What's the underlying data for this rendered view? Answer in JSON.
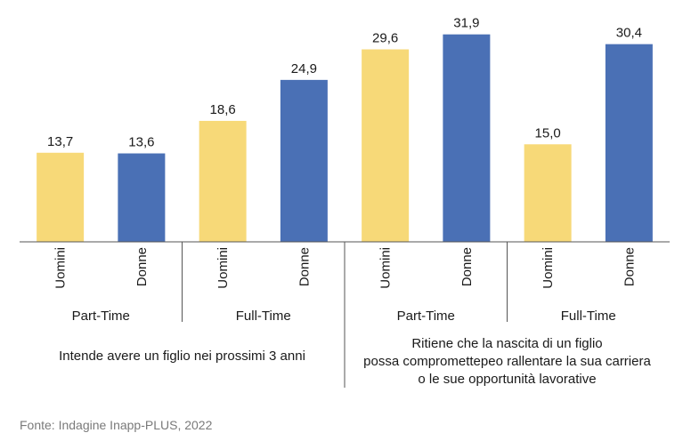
{
  "chart_data": {
    "type": "bar",
    "ylim": [
      0,
      35
    ],
    "colors": {
      "Uomini": "#f7d978",
      "Donne": "#4a70b5",
      "axis": "#555555"
    },
    "bars": [
      {
        "label": "Uomini",
        "series": "Uomini",
        "value": 13.7,
        "value_label": "13,7"
      },
      {
        "label": "Donne",
        "series": "Donne",
        "value": 13.6,
        "value_label": "13,6"
      },
      {
        "label": "Uomini",
        "series": "Uomini",
        "value": 18.6,
        "value_label": "18,6"
      },
      {
        "label": "Donne",
        "series": "Donne",
        "value": 24.9,
        "value_label": "24,9"
      },
      {
        "label": "Uomini",
        "series": "Uomini",
        "value": 29.6,
        "value_label": "29,6"
      },
      {
        "label": "Donne",
        "series": "Donne",
        "value": 31.9,
        "value_label": "31,9"
      },
      {
        "label": "Uomini",
        "series": "Uomini",
        "value": 15.0,
        "value_label": "15,0"
      },
      {
        "label": "Donne",
        "series": "Donne",
        "value": 30.4,
        "value_label": "30,4"
      }
    ],
    "groups": [
      {
        "label": "Part-Time"
      },
      {
        "label": "Full-Time"
      },
      {
        "label": "Part-Time"
      },
      {
        "label": "Full-Time"
      }
    ],
    "supergroups": [
      {
        "lines": [
          "Intende avere un figlio nei prossimi 3 anni"
        ]
      },
      {
        "lines": [
          "Ritiene che la nascita di un figlio",
          "possa comprometteреo rallentare la sua carriera",
          "o le sue opportunità lavorative"
        ]
      }
    ]
  },
  "source": "Fonte: Indagine Inapp-PLUS, 2022"
}
